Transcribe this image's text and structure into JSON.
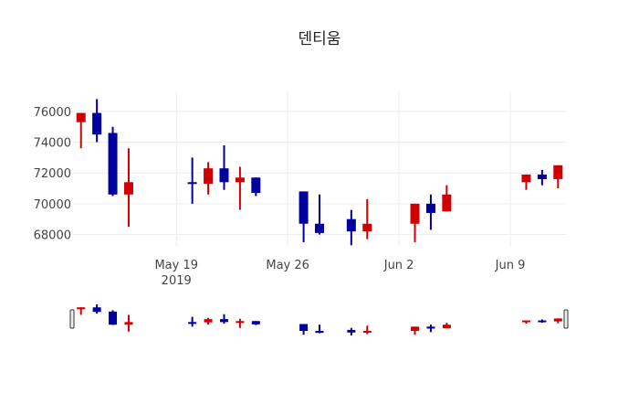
{
  "chart_data": {
    "type": "candlestick",
    "title": "덴티움",
    "xlabel": "",
    "ylabel": "",
    "x_ticks": [
      {
        "date": "2019-05-19",
        "label": "May 19",
        "sublabel": "2019"
      },
      {
        "date": "2019-05-26",
        "label": "May 26",
        "sublabel": ""
      },
      {
        "date": "2019-06-02",
        "label": "Jun 2",
        "sublabel": ""
      },
      {
        "date": "2019-06-09",
        "label": "Jun 9",
        "sublabel": ""
      }
    ],
    "y_ticks": [
      68000,
      70000,
      72000,
      74000,
      76000
    ],
    "y_tick_labels": [
      "68000",
      "70000",
      "72000",
      "74000",
      "76000"
    ],
    "xlim": [
      "2019-05-12T12:00",
      "2019-06-12T12:00"
    ],
    "ylim": [
      67200,
      77300
    ],
    "grid": true,
    "rangeslider": true,
    "increasing_color": "#d10000",
    "decreasing_color": "#00009e",
    "data": [
      {
        "date": "2019-05-13",
        "open": 75300,
        "high": 75900,
        "low": 73600,
        "close": 75900
      },
      {
        "date": "2019-05-14",
        "open": 75900,
        "high": 76800,
        "low": 74000,
        "close": 74500
      },
      {
        "date": "2019-05-15",
        "open": 74600,
        "high": 75000,
        "low": 70500,
        "close": 70600
      },
      {
        "date": "2019-05-16",
        "open": 70600,
        "high": 73600,
        "low": 68500,
        "close": 71400
      },
      {
        "date": "2019-05-20",
        "open": 71400,
        "high": 73000,
        "low": 70000,
        "close": 71300
      },
      {
        "date": "2019-05-21",
        "open": 71300,
        "high": 72700,
        "low": 70600,
        "close": 72300
      },
      {
        "date": "2019-05-22",
        "open": 72300,
        "high": 73800,
        "low": 70900,
        "close": 71400
      },
      {
        "date": "2019-05-23",
        "open": 71400,
        "high": 72400,
        "low": 69600,
        "close": 71700
      },
      {
        "date": "2019-05-24",
        "open": 71700,
        "high": 71700,
        "low": 70500,
        "close": 70700
      },
      {
        "date": "2019-05-27",
        "open": 70800,
        "high": 70800,
        "low": 67500,
        "close": 68700
      },
      {
        "date": "2019-05-28",
        "open": 68700,
        "high": 70600,
        "low": 68000,
        "close": 68100
      },
      {
        "date": "2019-05-30",
        "open": 69000,
        "high": 69600,
        "low": 67300,
        "close": 68200
      },
      {
        "date": "2019-05-31",
        "open": 68200,
        "high": 70300,
        "low": 67700,
        "close": 68700
      },
      {
        "date": "2019-06-03",
        "open": 68700,
        "high": 70000,
        "low": 67500,
        "close": 70000
      },
      {
        "date": "2019-06-04",
        "open": 70000,
        "high": 70600,
        "low": 68300,
        "close": 69400
      },
      {
        "date": "2019-06-05",
        "open": 69500,
        "high": 71200,
        "low": 69500,
        "close": 70600
      },
      {
        "date": "2019-06-10",
        "open": 71400,
        "high": 71900,
        "low": 70900,
        "close": 71900
      },
      {
        "date": "2019-06-11",
        "open": 71900,
        "high": 72200,
        "low": 71200,
        "close": 71600
      },
      {
        "date": "2019-06-12",
        "open": 71600,
        "high": 72500,
        "low": 71000,
        "close": 72500
      }
    ]
  }
}
